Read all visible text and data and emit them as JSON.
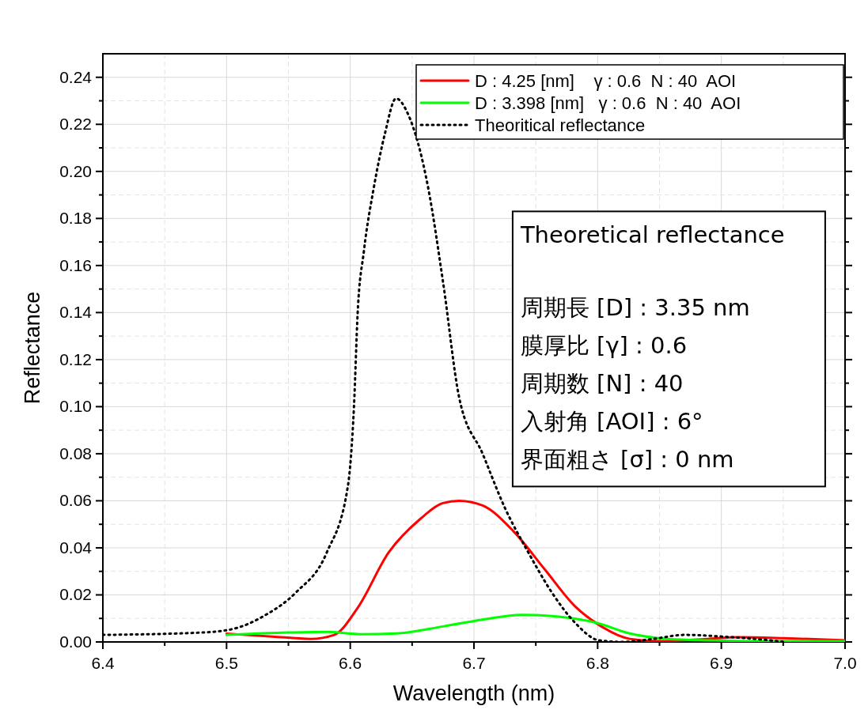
{
  "chart_data": {
    "type": "line",
    "xlabel": "Wavelength (nm)",
    "ylabel": "Reflectance",
    "xlim": [
      6.4,
      7.0
    ],
    "xticks": [
      6.4,
      6.5,
      6.6,
      6.7,
      6.8,
      6.9,
      {
        "value": 7.0,
        "label": "7.0"
      },
      {
        "value": 6.45,
        "label": null
      },
      {
        "value": 6.55,
        "label": null
      },
      {
        "value": 6.65,
        "label": null
      },
      {
        "value": 6.75,
        "label": null
      },
      {
        "value": 6.85,
        "label": null
      },
      {
        "value": 6.95,
        "label": null
      }
    ],
    "ylim": [
      0,
      0.25
    ],
    "yticks": [
      {
        "value": 0,
        "label": "0.00"
      },
      0.02,
      0.04,
      0.06,
      0.08,
      {
        "value": 0.1,
        "label": "0.10"
      },
      0.12,
      0.14,
      0.16,
      0.18,
      {
        "value": 0.2,
        "label": "0.20"
      },
      0.22,
      0.24,
      {
        "value": 0.01,
        "label": null
      },
      {
        "value": 0.03,
        "label": null
      },
      {
        "value": 0.05,
        "label": null
      },
      {
        "value": 0.07,
        "label": null
      },
      {
        "value": 0.09,
        "label": null
      },
      {
        "value": 0.11,
        "label": null
      },
      {
        "value": 0.13,
        "label": null
      },
      {
        "value": 0.15,
        "label": null
      },
      {
        "value": 0.17,
        "label": null
      },
      {
        "value": 0.19,
        "label": null
      },
      {
        "value": 0.21,
        "label": null
      },
      {
        "value": 0.23,
        "label": null
      }
    ],
    "grid": true,
    "legend": "top right",
    "series": [
      {
        "name": "D : 4.25 [nm]    γ : 0.6  N : 40  AOI",
        "color": "#ff0000",
        "line_style": "solid",
        "x": [
          6.5,
          6.537,
          6.568,
          6.587,
          6.606,
          6.631,
          6.656,
          6.675,
          6.688,
          6.707,
          6.732,
          6.757,
          6.782,
          6.8,
          6.826,
          6.851,
          6.889,
          6.914,
          6.951,
          7.0
        ],
        "values": [
          0.0035,
          0.0023,
          0.0013,
          0.003,
          0.0145,
          0.038,
          0.052,
          0.059,
          0.06,
          0.058,
          0.047,
          0.031,
          0.015,
          0.0076,
          0.0013,
          0.0003,
          0.0013,
          0.002,
          0.0016,
          0.0007
        ]
      },
      {
        "name": "D : 3.398 [nm]   γ : 0.6  N : 40  AOI",
        "color": "#00ff00",
        "line_style": "solid",
        "x": [
          6.5,
          6.55,
          6.58,
          6.61,
          6.637,
          6.675,
          6.713,
          6.738,
          6.763,
          6.8,
          6.826,
          6.857,
          6.889,
          6.95,
          7.0
        ],
        "values": [
          0.003,
          0.004,
          0.0043,
          0.0033,
          0.0036,
          0.0066,
          0.01,
          0.0115,
          0.011,
          0.008,
          0.0036,
          0.0013,
          0.0007,
          0.0003,
          0.0003
        ]
      },
      {
        "name": "Theoritical reflectance",
        "color": "#000000",
        "line_style": "dotted",
        "x": [
          6.4,
          6.48,
          6.505,
          6.53,
          6.556,
          6.581,
          6.598,
          6.603,
          6.606,
          6.611,
          6.619,
          6.628,
          6.637,
          6.647,
          6.663,
          6.675,
          6.688,
          6.707,
          6.725,
          6.744,
          6.763,
          6.782,
          6.801,
          6.82,
          6.845,
          6.87,
          6.9,
          6.933,
          6.951
        ],
        "values": [
          0.003,
          0.004,
          0.0055,
          0.011,
          0.021,
          0.038,
          0.066,
          0.1,
          0.14,
          0.166,
          0.193,
          0.216,
          0.231,
          0.224,
          0.193,
          0.153,
          0.104,
          0.08,
          0.057,
          0.038,
          0.021,
          0.008,
          0.0007,
          0.0,
          0.0013,
          0.003,
          0.0023,
          0.001,
          0.0
        ]
      }
    ],
    "annotations": [
      "Theoretical reflectance",
      "周期長 [D] : 3.35 nm",
      "膜厚比 [γ] : 0.6",
      "周期数 [N] : 40",
      "入射角 [AOI] : 6°",
      "界面粗さ [σ] : 0 nm"
    ]
  }
}
